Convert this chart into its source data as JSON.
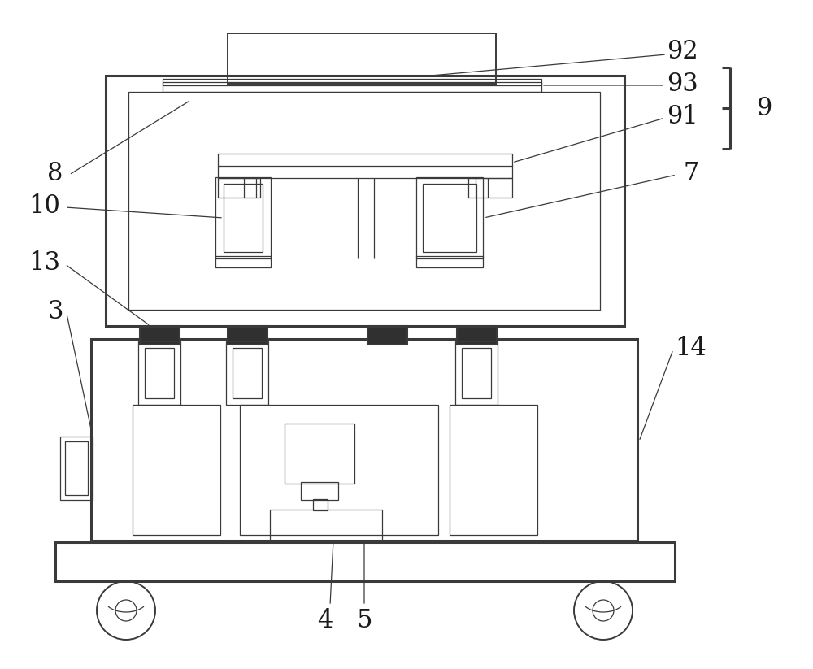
{
  "background_color": "#ffffff",
  "line_color": "#3a3a3a",
  "fig_width": 10.0,
  "fig_height": 8.23,
  "lw_thick": 2.2,
  "lw_med": 1.4,
  "lw_thin": 0.9
}
